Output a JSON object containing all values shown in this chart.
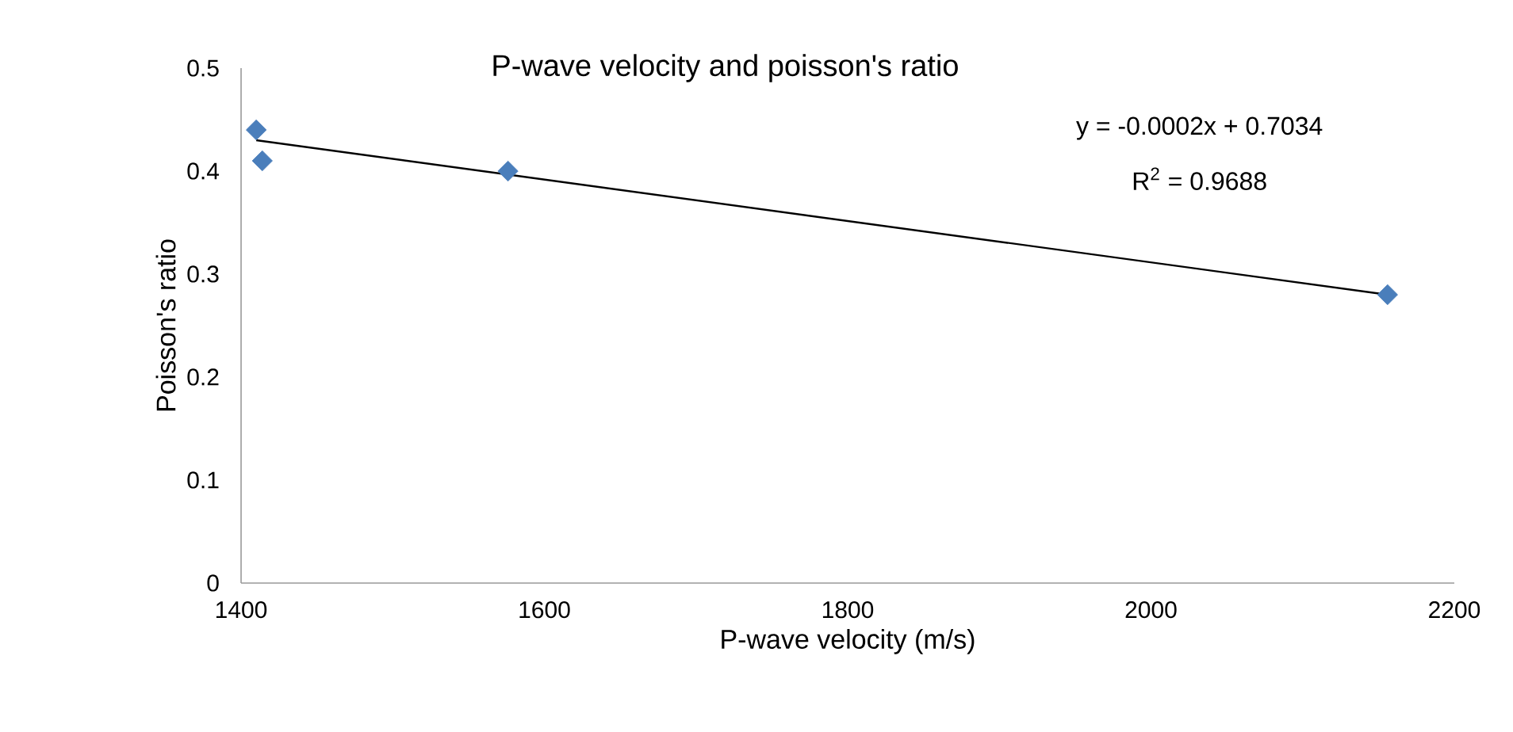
{
  "chart_data": {
    "type": "scatter",
    "title": "P-wave velocity and poisson's ratio",
    "xlabel": "P-wave velocity (m/s)",
    "ylabel": "Poisson's ratio",
    "annotations": [
      "y = -0.0002x + 0.7034",
      "R$^{2}$ = 0.9688"
    ],
    "x": [
      1410,
      1414,
      1576,
      2156
    ],
    "series": [
      {
        "color": "#4a7ebb",
        "values": [
          0.44,
          0.41,
          0.4,
          0.28
        ]
      },
      {
        "type": "line",
        "color": "#000000",
        "x": [
          1410,
          2156
        ],
        "values": [
          0.43,
          0.28
        ],
        "marker": "none"
      }
    ],
    "xlim": [
      1400,
      2200
    ],
    "xticks": [
      1400,
      1600,
      1800,
      2000,
      2200
    ],
    "ylim": [
      0,
      0.5
    ],
    "yticks": [
      0,
      0.1,
      0.2,
      0.3,
      0.4,
      0.5
    ],
    "grid": false,
    "marker": "diamond"
  }
}
